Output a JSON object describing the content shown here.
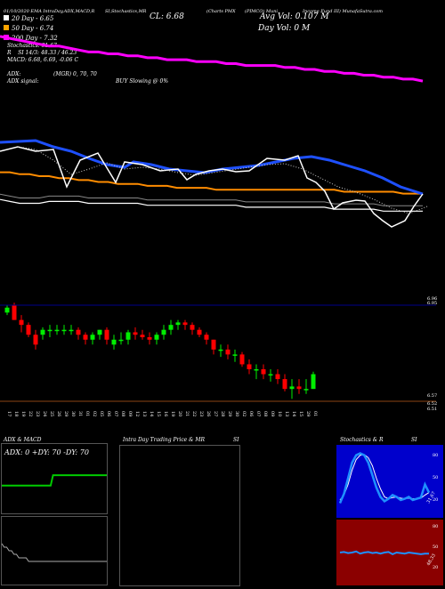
{
  "header": {
    "date": "01/10/2020",
    "ema_label": "EMA",
    "indicators_line": "IntraDay,ADX,MACD,R",
    "stoch_label": "SI,Stochastics,MR",
    "cl": "CL: 6.68",
    "ticker": "(Charts PMX",
    "company": "(PIMCO) Muni",
    "avg_vol": "Avg Vol: 0.107 M",
    "fund_name": "Income Fund III) MunafaSutra.com",
    "day_vol": "Day Vol: 0   M"
  },
  "legend": [
    {
      "text": "20  Day - 6.65",
      "color": "#ffffff"
    },
    {
      "text": "50  Day - 6.74",
      "color": "#ffa500"
    },
    {
      "text": "200  Day - 7.32",
      "color": "#ff00ff"
    }
  ],
  "stats": {
    "stochastics": "Stochastics: 31.67",
    "r_label": "R",
    "si": "SI 14/3: 48.33 / 46.23",
    "macd": "MACD: 6.68, 6.69, -0.06  C",
    "adx": "ADX:",
    "mgr": "(MGR) 0,  70,  70",
    "adx_signal": "ADX  signal:",
    "buy": "BUY Slowing @ 0%"
  },
  "price_axis": {
    "top_right_labels": [
      "6.96",
      "6.95"
    ],
    "bottom_right_labels": [
      "6.57",
      "6.52",
      "6.51"
    ]
  },
  "colors": {
    "ma20": "#ffffff",
    "ma50": "#ff8c00",
    "ma200": "#ff00ff",
    "ema_blue": "#1e50ff",
    "up_candle": "#00ee00",
    "down_candle": "#ff0000",
    "adx_green": "#00cc00",
    "stoch_blue": "#0000cc",
    "stoch_line": "#1e90ff",
    "si_red": "#8b0000"
  },
  "chart_data": [
    {
      "type": "line",
      "name": "price overlay",
      "series": [
        {
          "name": "20 Day",
          "values": [
            6.71,
            6.7,
            6.69,
            6.69,
            6.69,
            6.7,
            6.7,
            6.7,
            6.7,
            6.69,
            6.69,
            6.69,
            6.69,
            6.69,
            6.69,
            6.68,
            6.68,
            6.68,
            6.68,
            6.68,
            6.68,
            6.68,
            6.68,
            6.68,
            6.68,
            6.67,
            6.67,
            6.67,
            6.67,
            6.67,
            6.67,
            6.67,
            6.67,
            6.67,
            6.66,
            6.66,
            6.66,
            6.66,
            6.66,
            6.65,
            6.65,
            6.65,
            6.65,
            6.65
          ]
        },
        {
          "name": "50 Day",
          "values": [
            6.85,
            6.85,
            6.84,
            6.84,
            6.83,
            6.83,
            6.82,
            6.82,
            6.81,
            6.81,
            6.8,
            6.8,
            6.79,
            6.79,
            6.79,
            6.78,
            6.78,
            6.78,
            6.77,
            6.77,
            6.77,
            6.77,
            6.76,
            6.76,
            6.76,
            6.76,
            6.76,
            6.76,
            6.76,
            6.76,
            6.76,
            6.76,
            6.76,
            6.76,
            6.76,
            6.75,
            6.75,
            6.75,
            6.75,
            6.75,
            6.75,
            6.74,
            6.74,
            6.74
          ]
        },
        {
          "name": "200 Day",
          "values": [
            7.55,
            7.54,
            7.53,
            7.52,
            7.51,
            7.5,
            7.5,
            7.49,
            7.48,
            7.47,
            7.47,
            7.46,
            7.46,
            7.45,
            7.45,
            7.44,
            7.44,
            7.43,
            7.43,
            7.43,
            7.42,
            7.42,
            7.42,
            7.41,
            7.41,
            7.4,
            7.4,
            7.4,
            7.4,
            7.39,
            7.39,
            7.38,
            7.38,
            7.37,
            7.37,
            7.36,
            7.36,
            7.35,
            7.35,
            7.34,
            7.34,
            7.33,
            7.33,
            7.32
          ]
        }
      ]
    },
    {
      "type": "candlestick",
      "name": "price candles",
      "x": [
        "17 Wed",
        "18 Thu",
        "19 Fri",
        "22 Mon",
        "23 Tue",
        "24 Wed",
        "25 Thu",
        "26 Fri",
        "29 Mon",
        "30 Tue",
        "31 Wed",
        "01 Thu",
        "02 Fri",
        "05 Mon",
        "06 Tue",
        "07 Wed",
        "08 Thu",
        "09 Fri",
        "12 Mon",
        "13 Tue",
        "14 Wed",
        "15 Thu",
        "16 Fri",
        "19 Mon",
        "20 Tue",
        "21 Wed",
        "22 Thu",
        "23 Fri",
        "26 Mon",
        "27 Tue",
        "28 Wed",
        "29 Thu",
        "30 Fri",
        "02 Mon",
        "06 Fri",
        "07 Mon",
        "08 Tue",
        "09 Wed",
        "10 Thu",
        "13 Mon",
        "14 Tue",
        "15 Wed",
        "29 Wed",
        "01 Aug"
      ],
      "open": [
        6.93,
        6.96,
        6.9,
        6.88,
        6.84,
        6.84,
        6.86,
        6.86,
        6.86,
        6.86,
        6.86,
        6.84,
        6.82,
        6.84,
        6.86,
        6.8,
        6.82,
        6.82,
        6.85,
        6.84,
        6.83,
        6.82,
        6.84,
        6.86,
        6.88,
        6.89,
        6.88,
        6.86,
        6.84,
        6.82,
        6.78,
        6.78,
        6.76,
        6.76,
        6.72,
        6.7,
        6.7,
        6.68,
        6.68,
        6.66,
        6.62,
        6.63,
        6.62,
        6.62
      ],
      "high": [
        6.96,
        6.97,
        6.92,
        6.89,
        6.86,
        6.87,
        6.88,
        6.88,
        6.88,
        6.88,
        6.87,
        6.85,
        6.85,
        6.86,
        6.87,
        6.84,
        6.85,
        6.86,
        6.87,
        6.86,
        6.85,
        6.85,
        6.88,
        6.9,
        6.9,
        6.9,
        6.89,
        6.87,
        6.85,
        6.82,
        6.8,
        6.8,
        6.78,
        6.77,
        6.74,
        6.72,
        6.72,
        6.7,
        6.7,
        6.68,
        6.66,
        6.66,
        6.66,
        6.69
      ],
      "low": [
        6.92,
        6.9,
        6.85,
        6.83,
        6.78,
        6.82,
        6.83,
        6.84,
        6.84,
        6.84,
        6.82,
        6.8,
        6.8,
        6.82,
        6.8,
        6.78,
        6.8,
        6.8,
        6.82,
        6.82,
        6.8,
        6.8,
        6.82,
        6.84,
        6.86,
        6.86,
        6.84,
        6.83,
        6.8,
        6.76,
        6.75,
        6.74,
        6.73,
        6.71,
        6.68,
        6.66,
        6.66,
        6.65,
        6.64,
        6.61,
        6.58,
        6.6,
        6.6,
        6.62
      ],
      "close": [
        6.95,
        6.9,
        6.88,
        6.84,
        6.8,
        6.86,
        6.86,
        6.86,
        6.86,
        6.86,
        6.84,
        6.82,
        6.84,
        6.86,
        6.82,
        6.82,
        6.82,
        6.85,
        6.84,
        6.83,
        6.82,
        6.84,
        6.86,
        6.88,
        6.89,
        6.88,
        6.86,
        6.84,
        6.82,
        6.78,
        6.78,
        6.76,
        6.76,
        6.72,
        6.7,
        6.7,
        6.68,
        6.68,
        6.66,
        6.62,
        6.63,
        6.62,
        6.62,
        6.68
      ]
    },
    {
      "type": "line",
      "name": "ADX & MACD",
      "title": "ADX  & MACD",
      "label": "ADX: 0  +DY: 70  -DY: 70",
      "series": [
        {
          "name": "ADX",
          "values": [
            40,
            40,
            40,
            40,
            40,
            40,
            40,
            40,
            40,
            40,
            40,
            40,
            40,
            40,
            40,
            40,
            40,
            40,
            40,
            40,
            40,
            55,
            55,
            55,
            55,
            55,
            55,
            55,
            55,
            55,
            55,
            55,
            55,
            55,
            55,
            55,
            55,
            55,
            55,
            55,
            55,
            55,
            55,
            55
          ]
        }
      ]
    },
    {
      "type": "line",
      "name": "MACD",
      "series": [
        {
          "name": "MACD",
          "values": [
            0.02,
            0.01,
            0.01,
            0.0,
            0.0,
            -0.01,
            -0.01,
            -0.02,
            -0.02,
            -0.02,
            -0.02,
            -0.03,
            -0.03,
            -0.03,
            -0.03,
            -0.03,
            -0.03,
            -0.03,
            -0.03,
            -0.03,
            -0.03,
            -0.03,
            -0.03,
            -0.03,
            -0.03,
            -0.03,
            -0.03,
            -0.03,
            -0.03,
            -0.03,
            -0.03,
            -0.03,
            -0.03,
            -0.03,
            -0.03,
            -0.03,
            -0.03,
            -0.03,
            -0.03,
            -0.03,
            -0.03,
            -0.03,
            -0.03,
            -0.03
          ]
        }
      ]
    },
    {
      "type": "line",
      "name": "Intra Day",
      "title": "Intra Day Trading Price  & MR",
      "title_suffix": "SI"
    },
    {
      "type": "line",
      "name": "Stochastics",
      "title": "Stochastics & R",
      "title_suffix": "SI",
      "axis_labels": [
        "80",
        "50",
        "20"
      ],
      "end_label": "31.67",
      "series": [
        {
          "name": "%K",
          "values": [
            15,
            30,
            55,
            80,
            92,
            95,
            92,
            80,
            60,
            40,
            25,
            18,
            22,
            28,
            25,
            20,
            22,
            25,
            20,
            22,
            24,
            45,
            32
          ]
        },
        {
          "name": "%D",
          "values": [
            20,
            28,
            45,
            68,
            85,
            92,
            93,
            88,
            75,
            55,
            38,
            25,
            22,
            24,
            25,
            23,
            22,
            23,
            22,
            22,
            23,
            28,
            32
          ]
        }
      ]
    },
    {
      "type": "line",
      "name": "SI",
      "axis_labels": [
        "80",
        "50",
        "20"
      ],
      "end_label": "48.33",
      "series": [
        {
          "name": "SI",
          "values": [
            50,
            51,
            49,
            50,
            52,
            48,
            50,
            51,
            49,
            50,
            48,
            50,
            51,
            47,
            50,
            49,
            48,
            50,
            49,
            48,
            47,
            48,
            48
          ]
        }
      ]
    }
  ],
  "date_axis": {
    "labels": [
      "17 Wed",
      "18 Thu",
      "19 Fri",
      "22 Mon",
      "23 Tue",
      "24 Wed",
      "25 Thu",
      "26 Fri",
      "29 Mon",
      "30 Tue",
      "31 Wed",
      "01 Thu",
      "02 Fri",
      "05 Mon",
      "06 Tue",
      "07 Wed",
      "08 Thu",
      "09 Fri",
      "12 Mon",
      "13 Tue",
      "14 Wed",
      "15 Thu",
      "16 Fri",
      "19 Mon",
      "20 Tue",
      "21 Wed",
      "22 Thu",
      "23 Fri",
      "26 Mon",
      "27 Tue",
      "28 Wed",
      "29 Thu",
      "30 Fri",
      "02 Mon",
      "06 Fri",
      "07 Mon",
      "08 Tue",
      "09 Wed",
      "10 Thu",
      "13 Mon",
      "14 Tue",
      "15 Wed",
      "29 Wed",
      "01 Aug"
    ]
  }
}
